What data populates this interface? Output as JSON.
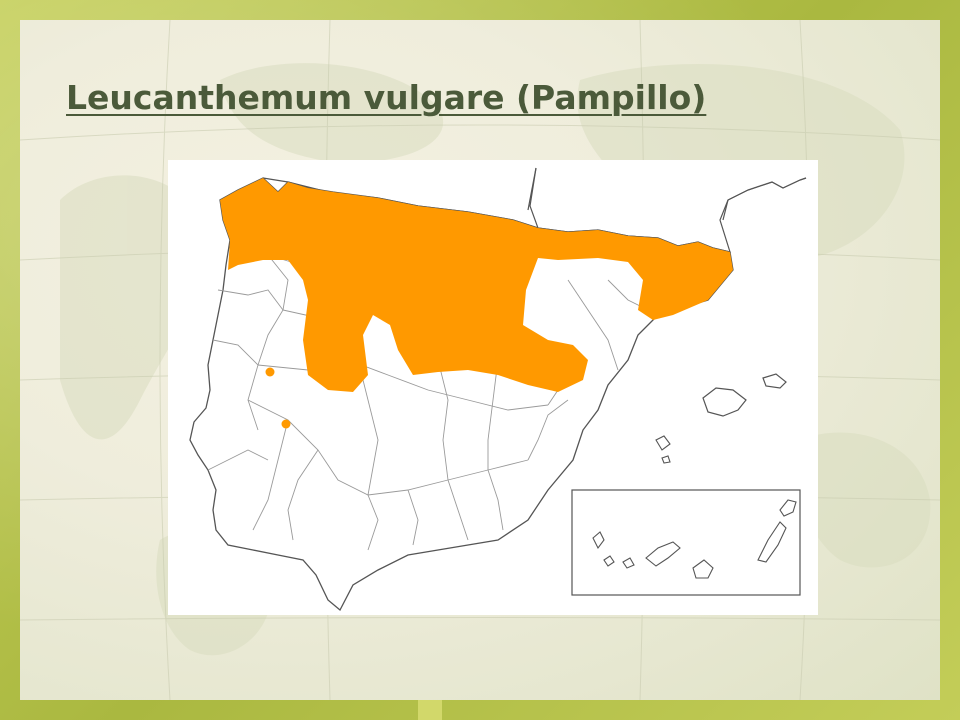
{
  "slide": {
    "title": "Leucanthemum vulgare (Pampillo)"
  },
  "map": {
    "region": "Iberian Peninsula",
    "distribution_color": "#ff9900",
    "outline_color": "#555555",
    "legend": []
  },
  "colors": {
    "frame": "#b6c24c",
    "title": "#4b5a3a",
    "panel": "#ffffff"
  }
}
